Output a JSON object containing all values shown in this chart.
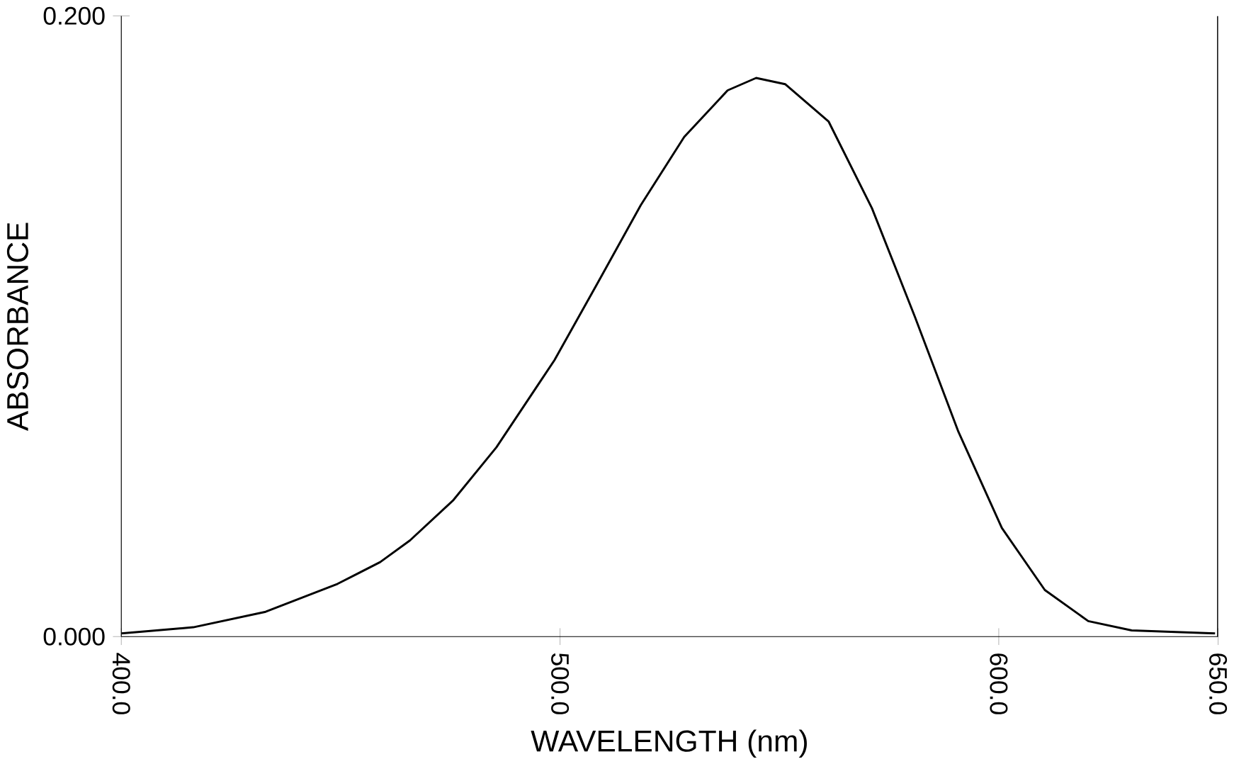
{
  "chart_data": {
    "type": "line",
    "xlabel": "WAVELENGTH (nm)",
    "ylabel": "ABSORBANCE",
    "color": "#000000",
    "x": [
      400,
      416.4,
      432.9,
      449.3,
      459,
      465.8,
      475.7,
      485.5,
      498.7,
      508.6,
      518.4,
      528.3,
      538.2,
      544.7,
      551.3,
      561.2,
      571.1,
      580.9,
      590.8,
      600.7,
      610.5,
      620.4,
      630.3,
      649.3
    ],
    "values": [
      0.001,
      0.003,
      0.008,
      0.017,
      0.024,
      0.031,
      0.044,
      0.061,
      0.089,
      0.114,
      0.139,
      0.161,
      0.176,
      0.18,
      0.178,
      0.166,
      0.138,
      0.103,
      0.066,
      0.035,
      0.015,
      0.005,
      0.002,
      0.001
    ],
    "xlim": [
      400,
      650
    ],
    "ylim": [
      0,
      0.2
    ],
    "xticks": [
      {
        "value": 400,
        "label": "400.0"
      },
      {
        "value": 500,
        "label": "500.0"
      },
      {
        "value": 600,
        "label": "600.0"
      },
      {
        "value": 650,
        "label": "650.0"
      }
    ],
    "yticks": [
      {
        "value": 0,
        "label": "0.000"
      },
      {
        "value": 0.2,
        "label": "0.200"
      }
    ],
    "grid": false,
    "marker": "none",
    "line_style": "solid"
  }
}
